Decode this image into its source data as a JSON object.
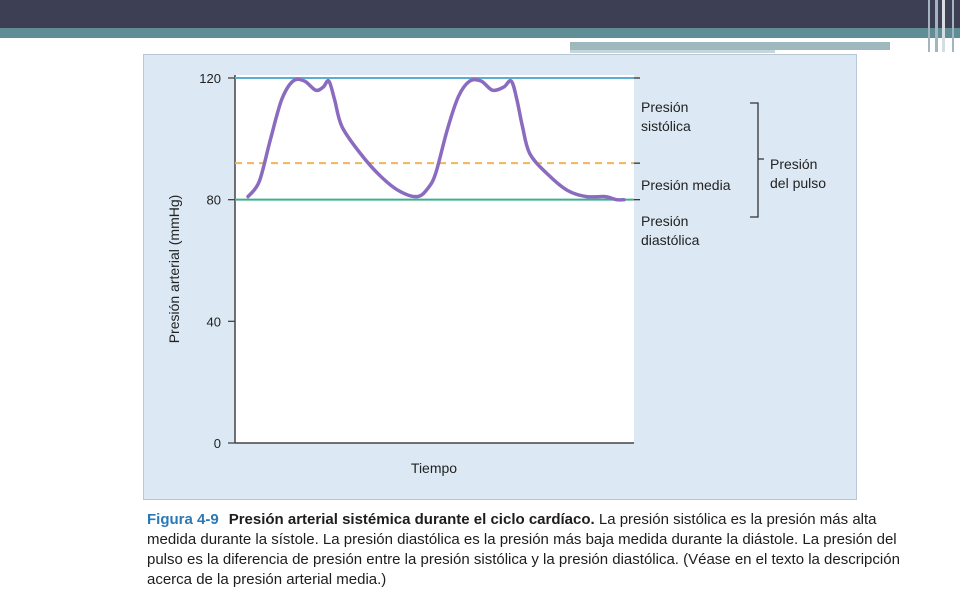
{
  "chart_data": {
    "type": "line",
    "title": "",
    "xlabel": "Tiempo",
    "ylabel": "Presión arterial (mmHg)",
    "ylim": [
      0,
      130
    ],
    "yticks": [
      0,
      40,
      80,
      120
    ],
    "grid": false,
    "series": [
      {
        "name": "",
        "color": "#8a6bbf",
        "x": [
          0,
          3,
          6,
          9,
          12,
          15,
          18,
          20,
          21.5,
          23,
          25,
          30,
          35,
          40,
          45,
          48,
          50,
          53,
          56,
          59,
          62,
          65,
          68,
          70,
          71.5,
          73,
          75,
          80,
          85,
          90,
          95,
          98,
          100
        ],
        "y": [
          81,
          86,
          100,
          113,
          119,
          119,
          116,
          117,
          119,
          113,
          104,
          95,
          88,
          83,
          81,
          84,
          89,
          103,
          114,
          119,
          119,
          116,
          117,
          119,
          113,
          104,
          95,
          88,
          83,
          81,
          81,
          80,
          80
        ]
      }
    ],
    "reference_lines": [
      {
        "value": 120,
        "label_1": "Presión",
        "label_2": "sistólica",
        "color": "#5aaed6",
        "style": "solid"
      },
      {
        "value": 92,
        "label_1": "Presión media",
        "color": "#f4b45a",
        "style": "dashed"
      },
      {
        "value": 80,
        "label_1": "Presión",
        "label_2": "diastólica",
        "color": "#3fae8c",
        "style": "solid"
      }
    ],
    "bracket": {
      "from": 120,
      "to": 80,
      "label_1": "Presión",
      "label_2": "del pulso"
    }
  },
  "caption": {
    "number": "Figura 4-9",
    "title": "Presión arterial sistémica durante el ciclo cardíaco.",
    "text": "La presión sistólica es la presión más alta medida durante la sístole. La presión diastólica es la presión más baja medida durante la diástole. La presión del pulso es la diferencia de presión entre la presión sistólica y la presión diastólica. (Véase en el texto la descripción acerca de la presión arterial media.)"
  }
}
